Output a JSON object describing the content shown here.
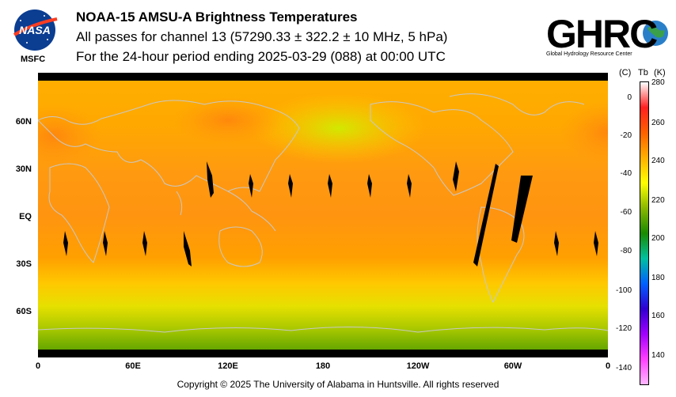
{
  "header": {
    "title": "NOAA-15 AMSU-A Brightness Temperatures",
    "subtitle_line1": "All passes for channel 13 (57290.33 ± 322.2 ± 10 MHz, 5 hPa)",
    "subtitle_line2": "For the 24-hour period ending 2025-03-29 (088) at 00:00 UTC"
  },
  "logos": {
    "nasa_text": "NASA",
    "msfc_text": "MSFC",
    "ghrc_text": "GHRC",
    "ghrc_subtitle": "Global Hydrology Resource Center"
  },
  "map": {
    "lat_labels": [
      "60N",
      "30N",
      "EQ",
      "30S",
      "60S"
    ],
    "lon_labels": [
      "0",
      "60E",
      "120E",
      "180",
      "120W",
      "60W",
      "0"
    ]
  },
  "colorbar": {
    "unit_c": "(C)",
    "unit_tb": "Tb",
    "unit_k": "(K)",
    "celsius_ticks": [
      "0",
      "-20",
      "-40",
      "-60",
      "-80",
      "-100",
      "-120",
      "-140"
    ],
    "kelvin_ticks": [
      "280",
      "260",
      "240",
      "220",
      "200",
      "180",
      "160",
      "140"
    ],
    "colors": [
      "#ffffff",
      "#ff2020",
      "#ff6000",
      "#ffb000",
      "#ffff00",
      "#8ab800",
      "#1a8a00",
      "#00c0a0",
      "#0060ff",
      "#3000d0",
      "#a000ff",
      "#ff40ff",
      "#ffb8ff"
    ]
  },
  "footer": {
    "copyright": "Copyright © 2025 The University of Alabama in Huntsville.  All rights reserved"
  }
}
